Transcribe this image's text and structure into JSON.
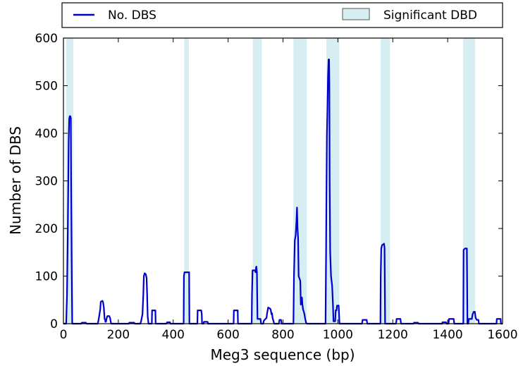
{
  "chart_data": {
    "type": "line",
    "title": "",
    "xlabel": "Meg3 sequence (bp)",
    "ylabel": "Number of DBS",
    "xlim": [
      0,
      1600
    ],
    "ylim": [
      0,
      600
    ],
    "x_ticks": [
      0,
      200,
      400,
      600,
      800,
      1000,
      1200,
      1400,
      1600
    ],
    "y_ticks": [
      0,
      100,
      200,
      300,
      400,
      500,
      600
    ],
    "grid": false,
    "legend": {
      "placement": "top, above plot",
      "entries": [
        {
          "label": "No. DBS",
          "kind": "line",
          "color": "#0000cc"
        },
        {
          "label": "Significant DBD",
          "kind": "patch",
          "color": "#d6eef2"
        }
      ]
    },
    "significant_regions": [
      [
        10,
        36
      ],
      [
        440,
        457
      ],
      [
        690,
        723
      ],
      [
        838,
        887
      ],
      [
        958,
        1005
      ],
      [
        1156,
        1190
      ],
      [
        1456,
        1500
      ]
    ],
    "series": [
      {
        "name": "No. DBS",
        "color": "#0000cc",
        "points": [
          [
            0,
            0
          ],
          [
            10,
            0
          ],
          [
            13,
            60
          ],
          [
            16,
            200
          ],
          [
            19,
            380
          ],
          [
            21,
            430
          ],
          [
            23,
            436
          ],
          [
            25,
            436
          ],
          [
            27,
            432
          ],
          [
            28,
            300
          ],
          [
            30,
            130
          ],
          [
            31,
            60
          ],
          [
            32,
            0
          ],
          [
            35,
            0
          ],
          [
            65,
            0
          ],
          [
            67,
            2
          ],
          [
            82,
            2
          ],
          [
            84,
            0
          ],
          [
            125,
            0
          ],
          [
            127,
            5
          ],
          [
            130,
            15
          ],
          [
            134,
            30
          ],
          [
            136,
            46
          ],
          [
            142,
            48
          ],
          [
            144,
            46
          ],
          [
            147,
            35
          ],
          [
            150,
            10
          ],
          [
            152,
            8
          ],
          [
            153,
            4
          ],
          [
            155,
            4
          ],
          [
            157,
            10
          ],
          [
            160,
            16
          ],
          [
            167,
            16
          ],
          [
            170,
            12
          ],
          [
            173,
            2
          ],
          [
            175,
            0
          ],
          [
            230,
            0
          ],
          [
            238,
            0
          ],
          [
            240,
            2
          ],
          [
            258,
            2
          ],
          [
            260,
            0
          ],
          [
            280,
            0
          ],
          [
            283,
            5
          ],
          [
            288,
            20
          ],
          [
            291,
            60
          ],
          [
            293,
            100
          ],
          [
            296,
            106
          ],
          [
            300,
            104
          ],
          [
            303,
            96
          ],
          [
            305,
            60
          ],
          [
            307,
            15
          ],
          [
            309,
            5
          ],
          [
            310,
            0
          ],
          [
            322,
            0
          ],
          [
            323,
            28
          ],
          [
            335,
            28
          ],
          [
            336,
            0
          ],
          [
            375,
            0
          ],
          [
            378,
            3
          ],
          [
            388,
            3
          ],
          [
            390,
            0
          ],
          [
            410,
            0
          ],
          [
            438,
            0
          ],
          [
            439,
            100
          ],
          [
            441,
            108
          ],
          [
            458,
            108
          ],
          [
            459,
            0
          ],
          [
            470,
            0
          ],
          [
            488,
            0
          ],
          [
            489,
            28
          ],
          [
            502,
            28
          ],
          [
            504,
            20
          ],
          [
            505,
            0
          ],
          [
            510,
            0
          ],
          [
            512,
            4
          ],
          [
            525,
            4
          ],
          [
            527,
            0
          ],
          [
            560,
            0
          ],
          [
            620,
            0
          ],
          [
            621,
            28
          ],
          [
            635,
            28
          ],
          [
            636,
            0
          ],
          [
            650,
            0
          ],
          [
            686,
            0
          ],
          [
            687,
            60
          ],
          [
            689,
            112
          ],
          [
            698,
            112
          ],
          [
            700,
            108
          ],
          [
            702,
            118
          ],
          [
            703,
            120
          ],
          [
            705,
            108
          ],
          [
            707,
            10
          ],
          [
            718,
            10
          ],
          [
            720,
            0
          ],
          [
            728,
            0
          ],
          [
            730,
            6
          ],
          [
            736,
            10
          ],
          [
            740,
            12
          ],
          [
            742,
            22
          ],
          [
            746,
            34
          ],
          [
            752,
            32
          ],
          [
            755,
            30
          ],
          [
            758,
            20
          ],
          [
            760,
            22
          ],
          [
            762,
            12
          ],
          [
            765,
            6
          ],
          [
            768,
            0
          ],
          [
            780,
            0
          ],
          [
            785,
            0
          ],
          [
            787,
            8
          ],
          [
            793,
            8
          ],
          [
            795,
            0
          ],
          [
            800,
            0
          ],
          [
            820,
            0
          ],
          [
            838,
            0
          ],
          [
            840,
            100
          ],
          [
            843,
            175
          ],
          [
            846,
            185
          ],
          [
            849,
            215
          ],
          [
            851,
            244
          ],
          [
            853,
            200
          ],
          [
            855,
            180
          ],
          [
            857,
            100
          ],
          [
            860,
            95
          ],
          [
            863,
            90
          ],
          [
            865,
            40
          ],
          [
            869,
            55
          ],
          [
            871,
            40
          ],
          [
            873,
            30
          ],
          [
            876,
            25
          ],
          [
            878,
            20
          ],
          [
            881,
            10
          ],
          [
            884,
            2
          ],
          [
            887,
            0
          ],
          [
            900,
            0
          ],
          [
            955,
            0
          ],
          [
            957,
            150
          ],
          [
            958,
            250
          ],
          [
            960,
            400
          ],
          [
            962,
            450
          ],
          [
            964,
            520
          ],
          [
            966,
            555
          ],
          [
            968,
            555
          ],
          [
            969,
            500
          ],
          [
            970,
            300
          ],
          [
            972,
            150
          ],
          [
            975,
            100
          ],
          [
            979,
            80
          ],
          [
            982,
            40
          ],
          [
            984,
            5
          ],
          [
            990,
            5
          ],
          [
            992,
            28
          ],
          [
            995,
            28
          ],
          [
            997,
            38
          ],
          [
            1003,
            38
          ],
          [
            1005,
            10
          ],
          [
            1006,
            0
          ],
          [
            1010,
            0
          ],
          [
            1088,
            0
          ],
          [
            1090,
            8
          ],
          [
            1105,
            8
          ],
          [
            1107,
            0
          ],
          [
            1120,
            0
          ],
          [
            1155,
            0
          ],
          [
            1156,
            100
          ],
          [
            1158,
            158
          ],
          [
            1161,
            165
          ],
          [
            1168,
            168
          ],
          [
            1170,
            160
          ],
          [
            1172,
            0
          ],
          [
            1180,
            0
          ],
          [
            1212,
            0
          ],
          [
            1214,
            10
          ],
          [
            1228,
            10
          ],
          [
            1230,
            0
          ],
          [
            1260,
            0
          ],
          [
            1275,
            0
          ],
          [
            1277,
            2
          ],
          [
            1292,
            2
          ],
          [
            1294,
            0
          ],
          [
            1360,
            0
          ],
          [
            1380,
            0
          ],
          [
            1381,
            3
          ],
          [
            1394,
            3
          ],
          [
            1396,
            0
          ],
          [
            1400,
            0
          ],
          [
            1403,
            0
          ],
          [
            1405,
            10
          ],
          [
            1422,
            10
          ],
          [
            1424,
            0
          ],
          [
            1430,
            0
          ],
          [
            1457,
            0
          ],
          [
            1458,
            155
          ],
          [
            1463,
            158
          ],
          [
            1470,
            158
          ],
          [
            1472,
            0
          ],
          [
            1475,
            0
          ],
          [
            1477,
            10
          ],
          [
            1488,
            10
          ],
          [
            1491,
            20
          ],
          [
            1495,
            25
          ],
          [
            1499,
            25
          ],
          [
            1502,
            12
          ],
          [
            1506,
            8
          ],
          [
            1512,
            8
          ],
          [
            1514,
            0
          ],
          [
            1540,
            0
          ],
          [
            1578,
            0
          ],
          [
            1579,
            10
          ],
          [
            1593,
            10
          ],
          [
            1594,
            0
          ],
          [
            1600,
            0
          ]
        ]
      }
    ]
  }
}
